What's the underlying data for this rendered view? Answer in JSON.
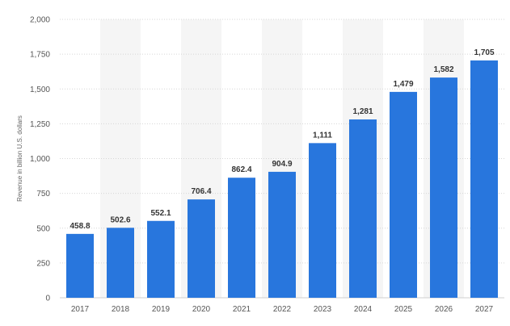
{
  "chart_data": {
    "type": "bar",
    "categories": [
      "2017",
      "2018",
      "2019",
      "2020",
      "2021",
      "2022",
      "2023",
      "2024",
      "2025",
      "2026",
      "2027"
    ],
    "series": [
      {
        "values": [
          458.8,
          502.6,
          552.1,
          706.4,
          862.4,
          904.9,
          1111,
          1281,
          1479,
          1582,
          1705
        ],
        "labels": [
          "458.8",
          "502.6",
          "552.1",
          "706.4",
          "862.4",
          "904.9",
          "1,111",
          "1,281",
          "1,479",
          "1,582",
          "1,705"
        ],
        "color": "#2876dd"
      }
    ],
    "ylabel": "Revenue in billion U.S. dollars",
    "ylim": [
      0,
      2000
    ],
    "yticks": [
      0,
      250,
      500,
      750,
      1000,
      1250,
      1500,
      1750,
      2000
    ],
    "ytick_labels": [
      "0",
      "250",
      "500",
      "750",
      "1,000",
      "1,250",
      "1,500",
      "1,750",
      "2,000"
    ],
    "grid": true,
    "grid_style": "dotted",
    "alternating_band_color": "#f5f5f5",
    "legend": "none"
  }
}
